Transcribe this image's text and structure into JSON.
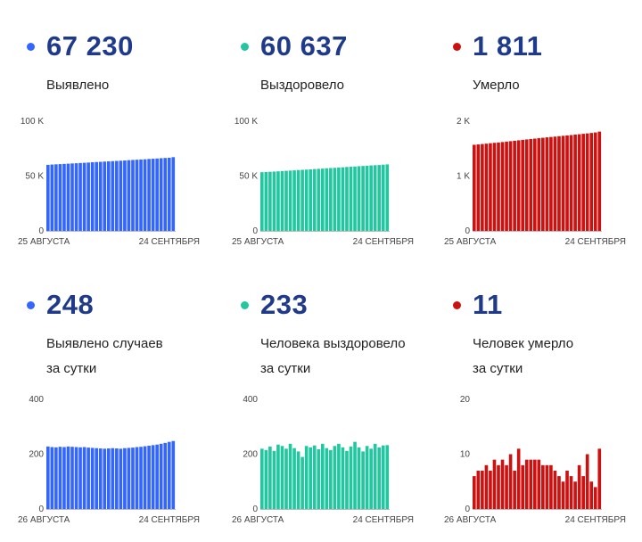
{
  "colors": {
    "blue": "#3366ff",
    "green": "#22c7a0",
    "red": "#cc1111"
  },
  "panels": [
    {
      "color": "blue",
      "value": "67 230",
      "label": [
        "Выявлено"
      ],
      "chart_data": {
        "type": "bar",
        "ylim": [
          0,
          100000
        ],
        "yticks": [
          "100 K",
          "50 K",
          "0"
        ],
        "x_start": "25 АВГУСТА",
        "x_end": "24 СЕНТЯБРЯ",
        "values": [
          60200,
          60500,
          60700,
          60900,
          61100,
          61300,
          61500,
          61700,
          61900,
          62100,
          62300,
          62600,
          62800,
          63000,
          63200,
          63400,
          63600,
          63800,
          64000,
          64200,
          64500,
          64700,
          64900,
          65100,
          65300,
          65600,
          65800,
          66000,
          66300,
          66500,
          66700,
          67230
        ]
      }
    },
    {
      "color": "green",
      "value": "60 637",
      "label": [
        "Выздоровело"
      ],
      "chart_data": {
        "type": "bar",
        "ylim": [
          0,
          100000
        ],
        "yticks": [
          "100 K",
          "50 K",
          "0"
        ],
        "x_start": "25 АВГУСТА",
        "x_end": "24 СЕНТЯБРЯ",
        "values": [
          53500,
          53700,
          53900,
          54100,
          54300,
          54600,
          54800,
          55000,
          55200,
          55500,
          55700,
          55900,
          56100,
          56400,
          56600,
          56800,
          57100,
          57300,
          57500,
          57800,
          58000,
          58300,
          58500,
          58700,
          59000,
          59200,
          59400,
          59700,
          59900,
          60100,
          60400,
          60637
        ]
      }
    },
    {
      "color": "red",
      "value": "1 811",
      "label": [
        "Умерло"
      ],
      "chart_data": {
        "type": "bar",
        "ylim": [
          0,
          2000
        ],
        "yticks": [
          "2 K",
          "1 K",
          "0"
        ],
        "x_start": "25 АВГУСТА",
        "x_end": "24 СЕНТЯБРЯ",
        "values": [
          1570,
          1577,
          1584,
          1591,
          1599,
          1606,
          1613,
          1620,
          1628,
          1636,
          1644,
          1652,
          1660,
          1668,
          1676,
          1683,
          1691,
          1698,
          1706,
          1713,
          1720,
          1727,
          1734,
          1741,
          1748,
          1756,
          1763,
          1770,
          1778,
          1786,
          1795,
          1811
        ]
      }
    },
    {
      "color": "blue",
      "value": "248",
      "label": [
        "Выявлено случаев",
        "за сутки"
      ],
      "chart_data": {
        "type": "bar",
        "ylim": [
          0,
          400
        ],
        "yticks": [
          "400",
          "200",
          "0"
        ],
        "x_start": "26 АВГУСТА",
        "x_end": "24 СЕНТЯБРЯ",
        "values": [
          228,
          226,
          225,
          227,
          226,
          228,
          227,
          226,
          225,
          226,
          224,
          223,
          222,
          221,
          220,
          221,
          222,
          221,
          220,
          222,
          223,
          224,
          226,
          227,
          229,
          231,
          233,
          235,
          238,
          241,
          245,
          248
        ]
      }
    },
    {
      "color": "green",
      "value": "233",
      "label": [
        "Человека выздоровело",
        "за сутки"
      ],
      "chart_data": {
        "type": "bar",
        "ylim": [
          0,
          400
        ],
        "yticks": [
          "400",
          "200",
          "0"
        ],
        "x_start": "26 АВГУСТА",
        "x_end": "24 СЕНТЯБРЯ",
        "values": [
          220,
          215,
          228,
          212,
          235,
          230,
          220,
          238,
          222,
          210,
          190,
          230,
          225,
          232,
          218,
          238,
          222,
          215,
          230,
          238,
          225,
          212,
          228,
          245,
          225,
          210,
          230,
          220,
          238,
          225,
          232,
          233
        ]
      }
    },
    {
      "color": "red",
      "value": "11",
      "label": [
        "Человек умерло",
        "за сутки"
      ],
      "chart_data": {
        "type": "bar",
        "ylim": [
          0,
          20
        ],
        "yticks": [
          "20",
          "10",
          "0"
        ],
        "x_start": "26 АВГУСТА",
        "x_end": "24 СЕНТЯБРЯ",
        "values": [
          6,
          7,
          7,
          8,
          7,
          9,
          8,
          9,
          8,
          10,
          7,
          11,
          8,
          9,
          9,
          9,
          9,
          8,
          8,
          8,
          7,
          6,
          5,
          7,
          6,
          5,
          8,
          6,
          10,
          5,
          4,
          11
        ]
      }
    }
  ]
}
